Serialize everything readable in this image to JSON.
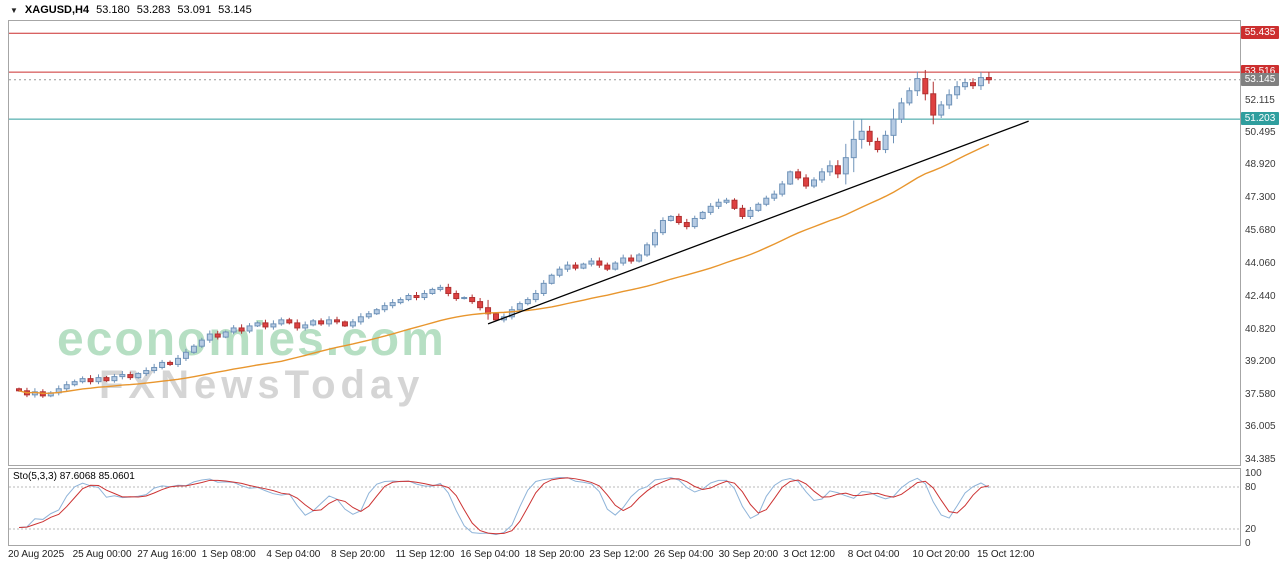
{
  "header": {
    "symbol": "XAGUSD,H4",
    "open": "53.180",
    "high": "53.283",
    "low": "53.091",
    "close": "53.145"
  },
  "watermark": {
    "line1": "economies.com",
    "line2": "FXNewsToday"
  },
  "price_axis": {
    "labels": [
      "52.115",
      "50.495",
      "48.920",
      "47.300",
      "45.680",
      "44.060",
      "42.440",
      "40.820",
      "39.200",
      "37.580",
      "36.005",
      "34.385"
    ],
    "badges": [
      {
        "value": "55.435",
        "price": 55.435,
        "color": "#cc2f2f"
      },
      {
        "value": "53.516",
        "price": 53.516,
        "color": "#cc2f2f"
      },
      {
        "value": "53.145",
        "price": 53.145,
        "color": "#808080"
      },
      {
        "value": "51.203",
        "price": 51.203,
        "color": "#2f9e9e"
      }
    ]
  },
  "time_axis": [
    "20 Aug 2025",
    "25 Aug 00:00",
    "27 Aug 16:00",
    "1 Sep 08:00",
    "4 Sep 04:00",
    "8 Sep 20:00",
    "11 Sep 12:00",
    "16 Sep 04:00",
    "18 Sep 20:00",
    "23 Sep 12:00",
    "26 Sep 04:00",
    "30 Sep 20:00",
    "3 Oct 12:00",
    "8 Oct 04:00",
    "10 Oct 20:00",
    "15 Oct 12:00"
  ],
  "indicator": {
    "label": "Sto(5,3,3) 87.6068 85.0601",
    "levels": [
      "100",
      "80",
      "20",
      "0"
    ],
    "level_values": [
      100,
      80,
      20,
      0
    ]
  },
  "chart_data": {
    "type": "candlestick",
    "instrument": "XAGUSD",
    "timeframe": "H4",
    "price_range": [
      34.14,
      56.04
    ],
    "first_open": 37.9,
    "closes": [
      37.8,
      37.6,
      37.75,
      37.55,
      37.7,
      37.9,
      38.1,
      38.25,
      38.4,
      38.25,
      38.45,
      38.3,
      38.5,
      38.6,
      38.45,
      38.65,
      38.8,
      38.95,
      39.2,
      39.1,
      39.4,
      39.7,
      40.0,
      40.3,
      40.6,
      40.45,
      40.7,
      40.9,
      40.75,
      41.0,
      41.15,
      40.95,
      41.1,
      41.3,
      41.15,
      40.9,
      41.05,
      41.25,
      41.1,
      41.3,
      41.2,
      41.0,
      41.2,
      41.45,
      41.6,
      41.8,
      42.0,
      42.15,
      42.3,
      42.5,
      42.4,
      42.6,
      42.8,
      42.9,
      42.6,
      42.35,
      42.4,
      42.2,
      41.9,
      41.6,
      41.3,
      41.45,
      41.8,
      42.1,
      42.3,
      42.6,
      43.1,
      43.5,
      43.8,
      44.0,
      43.85,
      44.05,
      44.2,
      44.0,
      43.8,
      44.1,
      44.35,
      44.2,
      44.5,
      45.0,
      45.6,
      46.2,
      46.4,
      46.1,
      45.9,
      46.3,
      46.6,
      46.9,
      47.1,
      47.2,
      46.8,
      46.4,
      46.7,
      47.0,
      47.3,
      47.5,
      48.0,
      48.6,
      48.3,
      47.9,
      48.2,
      48.6,
      48.9,
      48.5,
      49.3,
      50.2,
      50.6,
      50.1,
      49.7,
      50.4,
      51.2,
      52.0,
      52.6,
      53.2,
      52.45,
      51.4,
      51.9,
      52.4,
      52.8,
      53.0,
      52.85,
      53.25,
      53.145
    ],
    "wick_base": 0.07,
    "wick_overrides": {
      "59": 0.45,
      "104": 0.8,
      "105": 1.1,
      "106": 0.7,
      "110": 0.6,
      "113": 0.4,
      "114": 0.5,
      "115": 0.7
    },
    "hlines": [
      {
        "price": 55.435,
        "color": "#cc2f2f",
        "dash": "none"
      },
      {
        "price": 53.516,
        "color": "#cc2f2f",
        "dash": "none"
      },
      {
        "price": 53.145,
        "color": "#999999",
        "dash": "2,3"
      },
      {
        "price": 51.203,
        "color": "#2f9e9e",
        "dash": "none"
      }
    ],
    "trendline": {
      "from": {
        "index": 59,
        "price": 41.1
      },
      "to": {
        "index": 127,
        "price": 51.1
      },
      "color": "#000000"
    },
    "ma": {
      "period": 34,
      "color": "#e8962e"
    },
    "stochastic": {
      "k_period": 5,
      "k_smooth": 3,
      "d_period": 3,
      "k_color": "#8fb4d9",
      "d_color": "#cc3333",
      "last_k": 87.6068,
      "last_d": 85.0601
    },
    "colors": {
      "up_fill": "#b6cbe3",
      "up_stroke": "#6e92b8",
      "down_fill": "#de4141",
      "down_stroke": "#b03030",
      "level_line": "#b8b8b8"
    }
  }
}
